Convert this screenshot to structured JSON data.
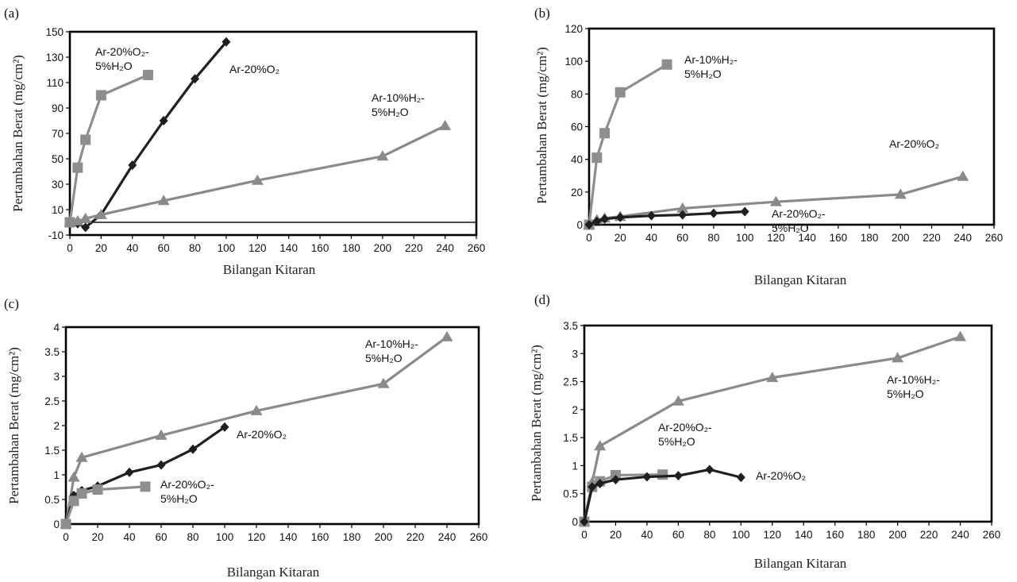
{
  "colors": {
    "o2": "#1f1f1f",
    "o2h2o": "#8e8e8e",
    "h2h2o": "#8a8a8a",
    "axis": "#000000"
  },
  "chart_data": [
    {
      "panel": "(a)",
      "type": "line",
      "xlabel": "Bilangan Kitaran",
      "ylabel": "Pertambahan Berat (mg/cm²)",
      "xlim": [
        0,
        260
      ],
      "ylim": [
        -10,
        150
      ],
      "xticks": [
        0,
        20,
        40,
        60,
        80,
        100,
        120,
        140,
        160,
        180,
        200,
        220,
        240,
        260
      ],
      "yticks": [
        -10,
        10,
        30,
        50,
        70,
        90,
        110,
        130,
        150
      ],
      "zero_line": true,
      "series": [
        {
          "name": "Ar-20%O₂",
          "lines": [
            "Ar-20%O₂"
          ],
          "key": "o2",
          "marker": "diamond",
          "x": [
            0,
            5,
            10,
            20,
            40,
            60,
            80,
            100
          ],
          "y": [
            0,
            -1,
            -4,
            6,
            45,
            80,
            113,
            142
          ]
        },
        {
          "name": "Ar-20%O₂-5%H₂O",
          "lines": [
            "Ar-20%O₂-",
            "5%H₂O"
          ],
          "key": "o2h2o",
          "marker": "square",
          "x": [
            0,
            5,
            10,
            20,
            50
          ],
          "y": [
            0,
            43,
            65,
            100,
            116
          ]
        },
        {
          "name": "Ar-10%H₂-5%H₂O",
          "lines": [
            "Ar-10%H₂-",
            "5%H₂O"
          ],
          "key": "h2h2o",
          "marker": "triangle",
          "x": [
            0,
            5,
            10,
            20,
            60,
            120,
            200,
            240
          ],
          "y": [
            0,
            1,
            3,
            6,
            17,
            33,
            52,
            76
          ]
        }
      ]
    },
    {
      "panel": "(b)",
      "type": "line",
      "xlabel": "Bilangan Kitaran",
      "ylabel": "Pertambahan Berat (mg/cm²)",
      "xlim": [
        0,
        260
      ],
      "ylim": [
        0,
        120
      ],
      "xticks": [
        0,
        20,
        40,
        60,
        80,
        100,
        120,
        140,
        160,
        180,
        200,
        220,
        240,
        260
      ],
      "yticks": [
        0,
        20,
        40,
        60,
        80,
        100,
        120
      ],
      "zero_line": false,
      "series": [
        {
          "name": "Ar-20%O₂-5%H₂O",
          "lines": [
            "Ar-20%O₂-",
            "5%H₂O"
          ],
          "key": "o2h2o",
          "marker": "square",
          "x": [
            0,
            5,
            10,
            20,
            50
          ],
          "y": [
            0,
            41,
            56,
            81,
            98
          ]
        },
        {
          "name": "Ar-10%H₂-5%H₂O",
          "lines": [
            "Ar-10%H₂-",
            "5%H₂O"
          ],
          "key": "h2h2o",
          "marker": "triangle",
          "x": [
            0,
            5,
            10,
            20,
            60,
            120,
            200,
            240
          ],
          "y": [
            0,
            3,
            4,
            5,
            10,
            14,
            18.5,
            29.5
          ]
        },
        {
          "name": "Ar-20%O₂",
          "lines": [
            "Ar-20%O₂"
          ],
          "key": "o2",
          "marker": "diamond",
          "x": [
            0,
            5,
            10,
            20,
            40,
            60,
            80,
            100
          ],
          "y": [
            0,
            2,
            3.5,
            4.5,
            5.5,
            6,
            7,
            8
          ]
        }
      ]
    },
    {
      "panel": "(c)",
      "type": "line",
      "xlabel": "Bilangan Kitaran",
      "ylabel": "Pertambahan Berat (mg/cm²)",
      "xlim": [
        0,
        260
      ],
      "ylim": [
        0,
        4
      ],
      "xticks": [
        0,
        20,
        40,
        60,
        80,
        100,
        120,
        140,
        160,
        180,
        200,
        220,
        240,
        260
      ],
      "yticks": [
        0,
        0.5,
        1,
        1.5,
        2,
        2.5,
        3,
        3.5,
        4
      ],
      "zero_line": false,
      "series": [
        {
          "name": "Ar-10%H₂-5%H₂O",
          "lines": [
            "Ar-10%H₂-",
            "5%H₂O"
          ],
          "key": "h2h2o",
          "marker": "triangle",
          "x": [
            0,
            5,
            10,
            60,
            120,
            200,
            240
          ],
          "y": [
            0,
            0.95,
            1.35,
            1.8,
            2.3,
            2.85,
            3.8
          ]
        },
        {
          "name": "Ar-20%O₂",
          "lines": [
            "Ar-20%O₂"
          ],
          "key": "o2",
          "marker": "diamond",
          "x": [
            0,
            5,
            10,
            20,
            40,
            60,
            80,
            100
          ],
          "y": [
            0,
            0.58,
            0.68,
            0.77,
            1.05,
            1.2,
            1.52,
            1.97
          ]
        },
        {
          "name": "Ar-20%O₂-5%H₂O",
          "lines": [
            "Ar-20%O₂-",
            "5%H₂O"
          ],
          "key": "o2h2o",
          "marker": "square",
          "x": [
            0,
            5,
            10,
            20,
            50
          ],
          "y": [
            0,
            0.47,
            0.62,
            0.7,
            0.76
          ]
        }
      ]
    },
    {
      "panel": "(d)",
      "type": "line",
      "xlabel": "Bilangan Kitaran",
      "ylabel": "Pertambahan Berat (mg/cm²)",
      "xlim": [
        0,
        260
      ],
      "ylim": [
        0,
        3.5
      ],
      "xticks": [
        0,
        20,
        40,
        60,
        80,
        100,
        120,
        140,
        160,
        180,
        200,
        220,
        240,
        260
      ],
      "yticks": [
        0,
        0.5,
        1,
        1.5,
        2,
        2.5,
        3,
        3.5
      ],
      "zero_line": false,
      "series": [
        {
          "name": "Ar-10%H₂-5%H₂O",
          "lines": [
            "Ar-10%H₂-",
            "5%H₂O"
          ],
          "key": "h2h2o",
          "marker": "triangle",
          "x": [
            0,
            5,
            10,
            60,
            120,
            200,
            240
          ],
          "y": [
            0,
            0.7,
            1.35,
            2.15,
            2.57,
            2.92,
            3.3
          ]
        },
        {
          "name": "Ar-20%O₂-5%H₂O",
          "lines": [
            "Ar-20%O₂-",
            "5%H₂O"
          ],
          "key": "o2h2o",
          "marker": "square",
          "x": [
            0,
            5,
            10,
            20,
            50
          ],
          "y": [
            0,
            0.62,
            0.72,
            0.83,
            0.84
          ]
        },
        {
          "name": "Ar-20%O₂",
          "lines": [
            "Ar-20%O₂"
          ],
          "key": "o2",
          "marker": "diamond",
          "x": [
            0,
            5,
            10,
            20,
            40,
            60,
            80,
            100
          ],
          "y": [
            0,
            0.62,
            0.68,
            0.75,
            0.8,
            0.82,
            0.93,
            0.79
          ]
        }
      ]
    }
  ]
}
